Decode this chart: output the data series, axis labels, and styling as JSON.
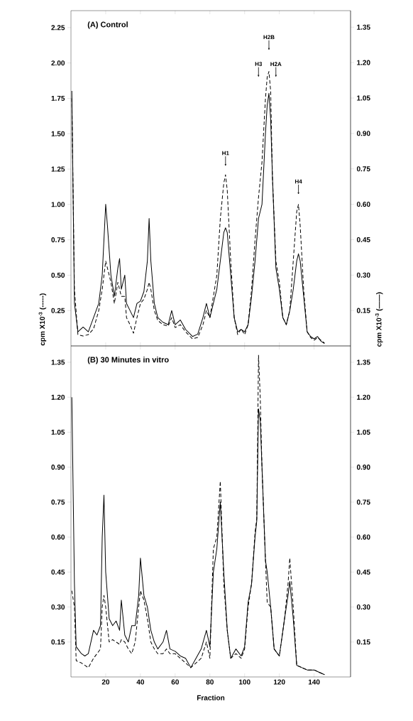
{
  "chart_data": [
    {
      "type": "line",
      "xlabel": null,
      "annotations": [
        "(A) Control",
        {
          "text": "H1",
          "x": 89,
          "y": 1.27
        },
        {
          "text": "H3",
          "x": 108,
          "y": 1.9
        },
        {
          "text": "H2B",
          "x": 114,
          "y": 2.09
        },
        {
          "text": "H2A",
          "x": 118,
          "y": 1.9
        },
        {
          "text": "H4",
          "x": 131,
          "y": 1.07
        }
      ],
      "x": [
        0.5,
        2,
        4,
        7,
        10,
        13,
        16,
        18,
        20,
        21,
        23,
        25,
        27,
        28,
        29,
        31,
        32,
        34,
        36,
        38,
        40,
        42,
        44,
        45,
        46,
        48,
        50,
        53,
        56,
        58,
        60,
        63,
        66,
        70,
        73,
        76,
        78,
        80,
        82,
        84,
        86,
        88,
        89,
        90,
        92,
        94,
        96,
        98,
        100,
        102,
        104,
        106,
        108,
        110,
        112,
        113,
        114,
        115,
        116,
        118,
        120,
        122,
        124,
        126,
        128,
        130,
        131,
        132,
        134,
        136,
        138,
        140,
        142,
        144,
        146
      ],
      "series": [
        {
          "color": "#000000",
          "line_style": "dashed",
          "axis": "y",
          "values": [
            1.75,
            0.4,
            0.08,
            0.07,
            0.08,
            0.12,
            0.25,
            0.4,
            0.6,
            0.55,
            0.45,
            0.3,
            0.45,
            0.4,
            0.35,
            0.35,
            0.2,
            0.15,
            0.09,
            0.2,
            0.3,
            0.33,
            0.4,
            0.45,
            0.4,
            0.25,
            0.18,
            0.15,
            0.14,
            0.2,
            0.13,
            0.15,
            0.1,
            0.05,
            0.06,
            0.15,
            0.25,
            0.2,
            0.35,
            0.5,
            0.9,
            1.15,
            1.21,
            1.1,
            0.6,
            0.2,
            0.08,
            0.12,
            0.08,
            0.15,
            0.4,
            0.75,
            1.05,
            1.3,
            1.75,
            1.9,
            1.94,
            1.8,
            1.2,
            0.6,
            0.45,
            0.2,
            0.15,
            0.25,
            0.6,
            0.95,
            1.0,
            0.85,
            0.4,
            0.1,
            0.06,
            0.04,
            0.06,
            0.04,
            0.02
          ]
        },
        {
          "color": "#000000",
          "line_style": "solid",
          "axis": "y2",
          "values": [
            1.08,
            0.18,
            0.06,
            0.08,
            0.06,
            0.12,
            0.18,
            0.3,
            0.6,
            0.51,
            0.3,
            0.21,
            0.33,
            0.37,
            0.24,
            0.3,
            0.18,
            0.15,
            0.12,
            0.18,
            0.19,
            0.23,
            0.36,
            0.54,
            0.36,
            0.18,
            0.12,
            0.1,
            0.09,
            0.15,
            0.09,
            0.11,
            0.07,
            0.04,
            0.05,
            0.12,
            0.18,
            0.12,
            0.18,
            0.24,
            0.36,
            0.48,
            0.5,
            0.48,
            0.3,
            0.12,
            0.06,
            0.07,
            0.06,
            0.09,
            0.21,
            0.36,
            0.54,
            0.6,
            0.9,
            1.02,
            1.07,
            0.96,
            0.72,
            0.33,
            0.24,
            0.12,
            0.09,
            0.15,
            0.24,
            0.36,
            0.39,
            0.36,
            0.21,
            0.06,
            0.04,
            0.03,
            0.04,
            0.02,
            0.01
          ]
        }
      ],
      "xlim": [
        0,
        161
      ],
      "xticks": [
        20,
        40,
        60,
        80,
        100,
        120,
        140
      ],
      "ylim": [
        0,
        2.37
      ],
      "yticks": [
        {
          "value": 0.25,
          "label": "0.25"
        },
        {
          "value": 0.5,
          "label": "0.50"
        },
        {
          "value": 0.75,
          "label": "0.75"
        },
        {
          "value": 1,
          "label": "1.00"
        },
        {
          "value": 1.25,
          "label": "1.25"
        },
        {
          "value": 1.5,
          "label": "1.50"
        },
        {
          "value": 1.75,
          "label": "1.75"
        },
        {
          "value": 2,
          "label": "2.00"
        },
        {
          "value": 2.25,
          "label": "2.25"
        }
      ],
      "y2lim": [
        0,
        1.42
      ],
      "y2ticks": [
        {
          "value": 0.15,
          "label": "0.15"
        },
        {
          "value": 0.3,
          "label": "0.30"
        },
        {
          "value": 0.45,
          "label": "0.45"
        },
        {
          "value": 0.6,
          "label": "0.60"
        },
        {
          "value": 0.75,
          "label": "0.75"
        },
        {
          "value": 0.9,
          "label": "0.90"
        },
        {
          "value": 1.05,
          "label": "1.05"
        },
        {
          "value": 1.2,
          "label": "1.20"
        },
        {
          "value": 1.35,
          "label": "1.35"
        }
      ],
      "tick_labels": "y",
      "grid": false,
      "marker": "none"
    },
    {
      "type": "line",
      "xlabel": "Fraction",
      "ylabel": "cpm X10$^{-3}$ (-----)",
      "y2label": "cpm X10$^{-3}$ (——)",
      "annotations": [
        "(B) 30 Minutes in vitro"
      ],
      "x": [
        0.5,
        2,
        3,
        6,
        8,
        10,
        13,
        15,
        17,
        18,
        19,
        20,
        22,
        24,
        26,
        28,
        29,
        31,
        33,
        35,
        37,
        39,
        40,
        42,
        44,
        46,
        48,
        50,
        53,
        55,
        57,
        60,
        63,
        66,
        69,
        72,
        75,
        78,
        80,
        82,
        84,
        86,
        88,
        90,
        92,
        95,
        98,
        100,
        102,
        104,
        106,
        107,
        108,
        109,
        110,
        112,
        113,
        115,
        117,
        120,
        123,
        125,
        126,
        128,
        130,
        133,
        136,
        140,
        143,
        146
      ],
      "series": [
        {
          "color": "#000000",
          "line_style": "dashed",
          "axis": "y",
          "values": [
            0.37,
            0.3,
            0.07,
            0.06,
            0.05,
            0.04,
            0.08,
            0.1,
            0.12,
            0.3,
            0.35,
            0.3,
            0.15,
            0.16,
            0.15,
            0.14,
            0.16,
            0.15,
            0.12,
            0.1,
            0.15,
            0.3,
            0.37,
            0.33,
            0.25,
            0.15,
            0.12,
            0.1,
            0.1,
            0.12,
            0.1,
            0.1,
            0.08,
            0.06,
            0.04,
            0.06,
            0.08,
            0.15,
            0.08,
            0.55,
            0.6,
            0.84,
            0.4,
            0.2,
            0.08,
            0.1,
            0.08,
            0.12,
            0.3,
            0.4,
            0.62,
            0.68,
            1.38,
            1.2,
            0.9,
            0.5,
            0.32,
            0.3,
            0.12,
            0.09,
            0.25,
            0.4,
            0.51,
            0.3,
            0.05,
            0.04,
            0.03,
            0.03,
            0.02,
            0.01
          ]
        },
        {
          "color": "#000000",
          "line_style": "solid",
          "axis": "y2",
          "values": [
            1.2,
            0.4,
            0.13,
            0.1,
            0.09,
            0.1,
            0.2,
            0.18,
            0.22,
            0.6,
            0.78,
            0.45,
            0.25,
            0.22,
            0.24,
            0.2,
            0.33,
            0.18,
            0.15,
            0.22,
            0.22,
            0.35,
            0.51,
            0.35,
            0.3,
            0.2,
            0.15,
            0.12,
            0.15,
            0.2,
            0.12,
            0.11,
            0.09,
            0.08,
            0.04,
            0.08,
            0.12,
            0.2,
            0.13,
            0.45,
            0.55,
            0.75,
            0.45,
            0.2,
            0.08,
            0.12,
            0.09,
            0.13,
            0.32,
            0.4,
            0.6,
            0.67,
            1.15,
            1.1,
            0.9,
            0.5,
            0.45,
            0.3,
            0.12,
            0.09,
            0.25,
            0.35,
            0.41,
            0.25,
            0.05,
            0.04,
            0.03,
            0.03,
            0.02,
            0.01
          ]
        }
      ],
      "xlim": [
        0,
        161
      ],
      "xticks": [
        20,
        40,
        60,
        80,
        100,
        120,
        140
      ],
      "ylim": [
        0,
        1.42
      ],
      "yticks": [
        {
          "value": 0.15,
          "label": "0.15"
        },
        {
          "value": 0.3,
          "label": "0.30"
        },
        {
          "value": 0.45,
          "label": "0.45"
        },
        {
          "value": 0.6,
          "label": "0.60"
        },
        {
          "value": 0.75,
          "label": "0.75"
        },
        {
          "value": 0.9,
          "label": "0.90"
        },
        {
          "value": 1.05,
          "label": "1.05"
        },
        {
          "value": 1.2,
          "label": "1.20"
        },
        {
          "value": 1.35,
          "label": "1.35"
        }
      ],
      "y2lim": [
        0,
        1.42
      ],
      "y2ticks": [
        {
          "value": 0.15,
          "label": "0.15"
        },
        {
          "value": 0.3,
          "label": "0.30"
        },
        {
          "value": 0.45,
          "label": "0.45"
        },
        {
          "value": 0.6,
          "label": "0.60"
        },
        {
          "value": 0.75,
          "label": "0.75"
        },
        {
          "value": 0.9,
          "label": "0.90"
        },
        {
          "value": 1.05,
          "label": "1.05"
        },
        {
          "value": 1.2,
          "label": "1.20"
        },
        {
          "value": 1.35,
          "label": "1.35"
        }
      ],
      "grid": false,
      "marker": "none"
    }
  ]
}
